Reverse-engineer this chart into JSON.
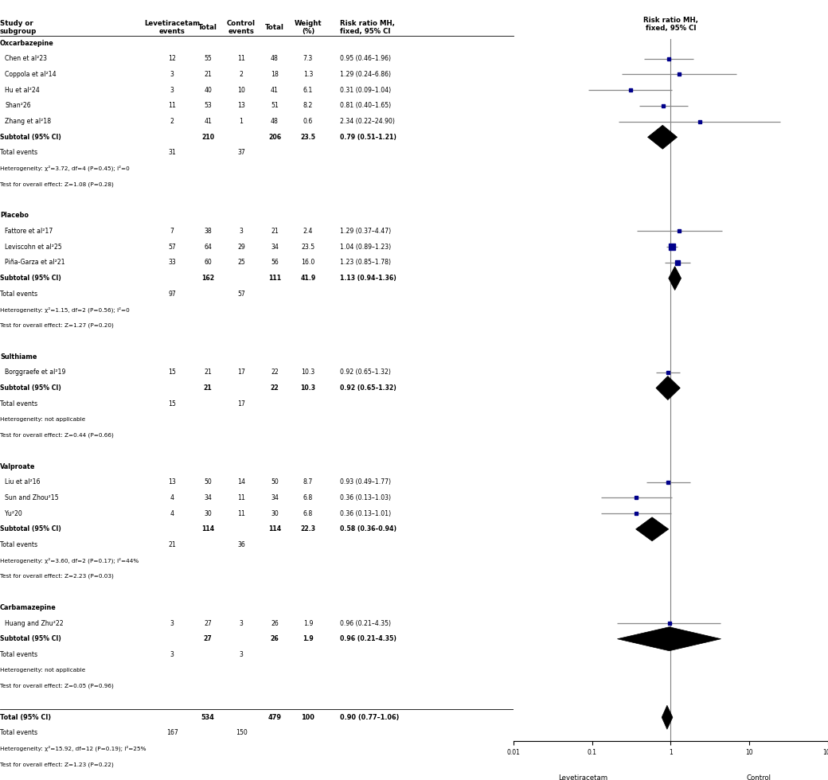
{
  "headers": {
    "col1": "Study or\nsubgroup",
    "col2": "Levetiracetam\nevents",
    "col3": "Total",
    "col4": "Control\nevents",
    "col5": "Total",
    "col6": "Weight\n(%)",
    "col7": "Risk ratio MH,\nfixed, 95% CI"
  },
  "groups": [
    {
      "name": "Oxcarbazepine",
      "studies": [
        {
          "label": "Chen et al²23",
          "lev_events": 12,
          "lev_total": 55,
          "ctrl_events": 11,
          "ctrl_total": 48,
          "weight": 7.3,
          "rr": 0.95,
          "ci_lo": 0.46,
          "ci_hi": 1.96
        },
        {
          "label": "Coppola et al²14",
          "lev_events": 3,
          "lev_total": 21,
          "ctrl_events": 2,
          "ctrl_total": 18,
          "weight": 1.3,
          "rr": 1.29,
          "ci_lo": 0.24,
          "ci_hi": 6.86
        },
        {
          "label": "Hu et al²24",
          "lev_events": 3,
          "lev_total": 40,
          "ctrl_events": 10,
          "ctrl_total": 41,
          "weight": 6.1,
          "rr": 0.31,
          "ci_lo": 0.09,
          "ci_hi": 1.04
        },
        {
          "label": "Shan²26",
          "lev_events": 11,
          "lev_total": 53,
          "ctrl_events": 13,
          "ctrl_total": 51,
          "weight": 8.2,
          "rr": 0.81,
          "ci_lo": 0.4,
          "ci_hi": 1.65
        },
        {
          "label": "Zhang et al²18",
          "lev_events": 2,
          "lev_total": 41,
          "ctrl_events": 1,
          "ctrl_total": 48,
          "weight": 0.6,
          "rr": 2.34,
          "ci_lo": 0.22,
          "ci_hi": 24.9
        }
      ],
      "subtotal": {
        "lev_total": 210,
        "ctrl_total": 206,
        "weight": 23.5,
        "rr": 0.79,
        "ci_lo": 0.51,
        "ci_hi": 1.21,
        "lev_events": 31,
        "ctrl_events": 37
      },
      "het_text": "Heterogeneity: χ²=3.72, df=4 (P=0.45); I²=0",
      "test_text": "Test for overall effect: Z=1.08 (P=0.28)"
    },
    {
      "name": "Placebo",
      "studies": [
        {
          "label": "Fattore et al²17",
          "lev_events": 7,
          "lev_total": 38,
          "ctrl_events": 3,
          "ctrl_total": 21,
          "weight": 2.4,
          "rr": 1.29,
          "ci_lo": 0.37,
          "ci_hi": 4.47
        },
        {
          "label": "Leviscohn et al²25",
          "lev_events": 57,
          "lev_total": 64,
          "ctrl_events": 29,
          "ctrl_total": 34,
          "weight": 23.5,
          "rr": 1.04,
          "ci_lo": 0.89,
          "ci_hi": 1.23
        },
        {
          "label": "Piña-Garza et al²21",
          "lev_events": 33,
          "lev_total": 60,
          "ctrl_events": 25,
          "ctrl_total": 56,
          "weight": 16.0,
          "rr": 1.23,
          "ci_lo": 0.85,
          "ci_hi": 1.78
        }
      ],
      "subtotal": {
        "lev_total": 162,
        "ctrl_total": 111,
        "weight": 41.9,
        "rr": 1.13,
        "ci_lo": 0.94,
        "ci_hi": 1.36,
        "lev_events": 97,
        "ctrl_events": 57
      },
      "het_text": "Heterogeneity: χ²=1.15, df=2 (P=0.56); I²=0",
      "test_text": "Test for overall effect: Z=1.27 (P=0.20)"
    },
    {
      "name": "Sulthiame",
      "studies": [
        {
          "label": "Borggraefe et al²19",
          "lev_events": 15,
          "lev_total": 21,
          "ctrl_events": 17,
          "ctrl_total": 22,
          "weight": 10.3,
          "rr": 0.92,
          "ci_lo": 0.65,
          "ci_hi": 1.32
        }
      ],
      "subtotal": {
        "lev_total": 21,
        "ctrl_total": 22,
        "weight": 10.3,
        "rr": 0.92,
        "ci_lo": 0.65,
        "ci_hi": 1.32,
        "lev_events": 15,
        "ctrl_events": 17
      },
      "het_text": "Heterogeneity: not applicable",
      "test_text": "Test for overall effect: Z=0.44 (P=0.66)"
    },
    {
      "name": "Valproate",
      "studies": [
        {
          "label": "Liu et al²16",
          "lev_events": 13,
          "lev_total": 50,
          "ctrl_events": 14,
          "ctrl_total": 50,
          "weight": 8.7,
          "rr": 0.93,
          "ci_lo": 0.49,
          "ci_hi": 1.77
        },
        {
          "label": "Sun and Zhou²15",
          "lev_events": 4,
          "lev_total": 34,
          "ctrl_events": 11,
          "ctrl_total": 34,
          "weight": 6.8,
          "rr": 0.36,
          "ci_lo": 0.13,
          "ci_hi": 1.03
        },
        {
          "label": "Yu²20",
          "lev_events": 4,
          "lev_total": 30,
          "ctrl_events": 11,
          "ctrl_total": 30,
          "weight": 6.8,
          "rr": 0.36,
          "ci_lo": 0.13,
          "ci_hi": 1.01
        }
      ],
      "subtotal": {
        "lev_total": 114,
        "ctrl_total": 114,
        "weight": 22.3,
        "rr": 0.58,
        "ci_lo": 0.36,
        "ci_hi": 0.94,
        "lev_events": 21,
        "ctrl_events": 36
      },
      "het_text": "Heterogeneity: χ²=3.60, df=2 (P=0.17); I²=44%",
      "test_text": "Test for overall effect: Z=2.23 (P=0.03)"
    },
    {
      "name": "Carbamazepine",
      "studies": [
        {
          "label": "Huang and Zhu²22",
          "lev_events": 3,
          "lev_total": 27,
          "ctrl_events": 3,
          "ctrl_total": 26,
          "weight": 1.9,
          "rr": 0.96,
          "ci_lo": 0.21,
          "ci_hi": 4.35
        }
      ],
      "subtotal": {
        "lev_total": 27,
        "ctrl_total": 26,
        "weight": 1.9,
        "rr": 0.96,
        "ci_lo": 0.21,
        "ci_hi": 4.35,
        "lev_events": 3,
        "ctrl_events": 3
      },
      "het_text": "Heterogeneity: not applicable",
      "test_text": "Test for overall effect: Z=0.05 (P=0.96)"
    }
  ],
  "total": {
    "lev_total": 534,
    "ctrl_total": 479,
    "weight": 100,
    "rr": 0.9,
    "ci_lo": 0.77,
    "ci_hi": 1.06,
    "lev_events": 167,
    "ctrl_events": 150
  },
  "total_het": "Heterogeneity: χ²=15.92, df=12 (P=0.19); I²=25%",
  "total_test": "Test for overall effect: Z=1.23 (P=0.22)",
  "xlabel_left": "Levetiracetam",
  "xlabel_right": "Control",
  "diamond_color": "black",
  "ci_line_color": "#888888",
  "study_dot_color": "#00008B"
}
